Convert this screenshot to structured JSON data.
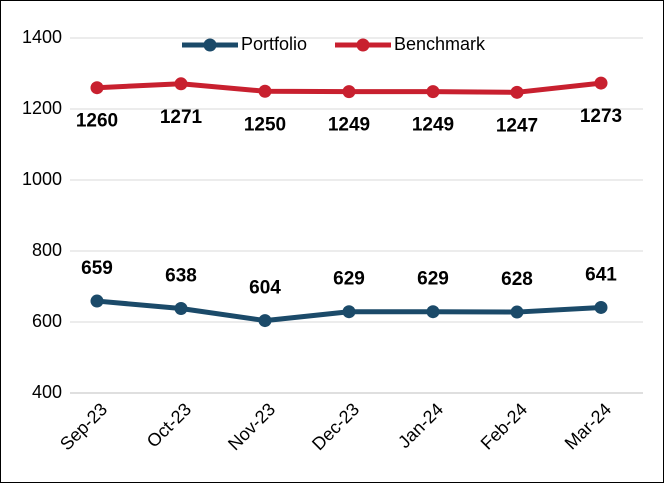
{
  "chart_data": {
    "type": "line",
    "categories": [
      "Sep-23",
      "Oct-23",
      "Nov-23",
      "Dec-23",
      "Jan-24",
      "Feb-24",
      "Mar-24"
    ],
    "series": [
      {
        "name": "Portfolio",
        "color": "#1b4a69",
        "values": [
          659,
          638,
          604,
          629,
          629,
          628,
          641
        ]
      },
      {
        "name": "Benchmark",
        "color": "#c8202f",
        "values": [
          1260,
          1271,
          1250,
          1249,
          1249,
          1247,
          1273
        ]
      }
    ],
    "ylim": [
      400,
      1400
    ],
    "yticks": [
      400,
      600,
      800,
      1000,
      1200,
      1400
    ],
    "grid": true,
    "legend": "top",
    "data_labels": true
  }
}
